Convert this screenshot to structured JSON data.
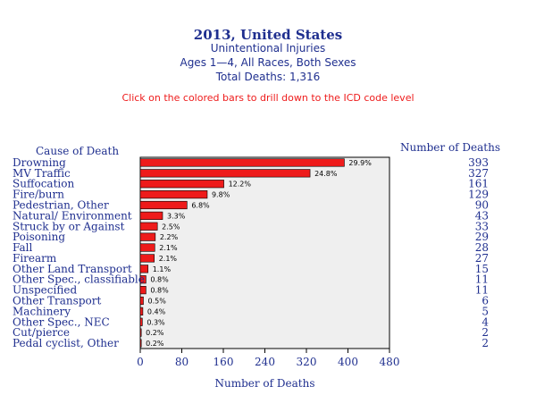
{
  "header": {
    "title": "2013, United States",
    "subtitle": "Unintentional Injuries",
    "subtitle2": "Ages 1—4, All Races, Both Sexes",
    "total": "Total Deaths: 1,316",
    "instruction": "Click on the colored bars to drill down to the ICD code level"
  },
  "columns": {
    "cause": "Cause of Death",
    "number": "Number of Deaths"
  },
  "colors": {
    "bar": "#ee1b1b",
    "text": "#1f2f8f",
    "plot_bg": "#efefef"
  },
  "chart_data": {
    "type": "bar",
    "orientation": "horizontal",
    "xlabel": "Number of Deaths",
    "xlim": [
      0,
      480
    ],
    "xticks": [
      0,
      80,
      160,
      240,
      320,
      400,
      480
    ],
    "categories": [
      "Drowning",
      "MV Traffic",
      "Suffocation",
      "Fire/burn",
      "Pedestrian, Other",
      "Natural/ Environment",
      "Struck by or Against",
      "Poisoning",
      "Fall",
      "Firearm",
      "Other Land Transport",
      "Other Spec., classifiable",
      "Unspecified",
      "Other Transport",
      "Machinery",
      "Other Spec., NEC",
      "Cut/pierce",
      "Pedal cyclist, Other"
    ],
    "values": [
      393,
      327,
      161,
      129,
      90,
      43,
      33,
      29,
      28,
      27,
      15,
      11,
      11,
      6,
      5,
      4,
      2,
      2
    ],
    "percent_labels": [
      "29.9%",
      "24.8%",
      "12.2%",
      "9.8%",
      "6.8%",
      "3.3%",
      "2.5%",
      "2.2%",
      "2.1%",
      "2.1%",
      "1.1%",
      "0.8%",
      "0.8%",
      "0.5%",
      "0.4%",
      "0.3%",
      "0.2%",
      "0.2%"
    ]
  }
}
